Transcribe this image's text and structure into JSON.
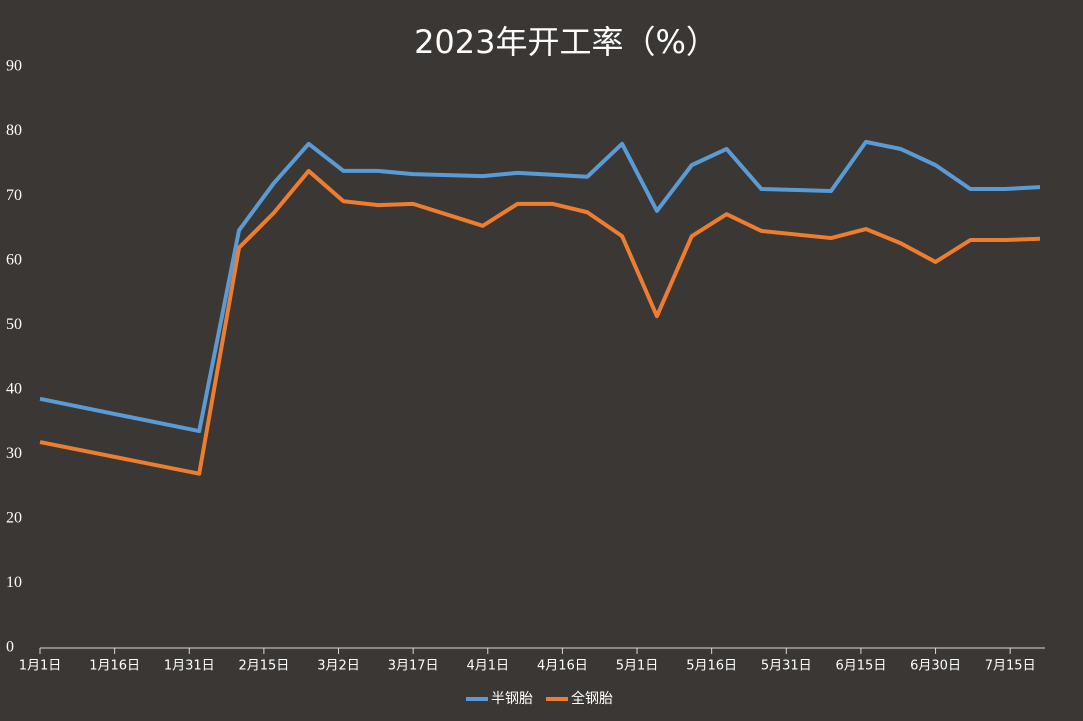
{
  "chart_data": {
    "type": "line",
    "title": "2023年开工率（%）",
    "x": [
      "01-01",
      "02-02",
      "02-10",
      "02-17",
      "02-24",
      "03-03",
      "03-10",
      "03-17",
      "03-31",
      "04-07",
      "04-14",
      "04-21",
      "04-28",
      "05-05",
      "05-12",
      "05-19",
      "05-26",
      "06-09",
      "06-16",
      "06-23",
      "06-30",
      "07-07",
      "07-14",
      "07-21"
    ],
    "series": [
      {
        "name": "半钢胎",
        "color": "#5b9bd5",
        "values": [
          38.6,
          33.6,
          64.7,
          72.0,
          78.1,
          73.9,
          73.9,
          73.4,
          73.1,
          73.6,
          73.3,
          73.0,
          78.1,
          67.7,
          74.8,
          77.3,
          71.1,
          70.8,
          78.4,
          77.3,
          74.8,
          71.1,
          71.1,
          71.4
        ]
      },
      {
        "name": "全钢胎",
        "color": "#ed7d31",
        "values": [
          31.9,
          27.0,
          62.0,
          67.4,
          73.9,
          69.2,
          68.6,
          68.8,
          65.4,
          68.8,
          68.8,
          67.5,
          63.8,
          51.4,
          63.8,
          67.2,
          64.6,
          63.5,
          64.9,
          62.7,
          59.8,
          63.2,
          63.2,
          63.4
        ]
      }
    ],
    "xlim": [
      "01-01",
      "07-22"
    ],
    "xticks": [
      {
        "value": "01-01",
        "label": "1月1日"
      },
      {
        "value": "01-16",
        "label": "1月16日"
      },
      {
        "value": "01-31",
        "label": "1月31日"
      },
      {
        "value": "02-15",
        "label": "2月15日"
      },
      {
        "value": "03-02",
        "label": "3月2日"
      },
      {
        "value": "03-17",
        "label": "3月17日"
      },
      {
        "value": "04-01",
        "label": "4月1日"
      },
      {
        "value": "04-16",
        "label": "4月16日"
      },
      {
        "value": "05-01",
        "label": "5月1日"
      },
      {
        "value": "05-16",
        "label": "5月16日"
      },
      {
        "value": "05-31",
        "label": "5月31日"
      },
      {
        "value": "06-15",
        "label": "6月15日"
      },
      {
        "value": "06-30",
        "label": "6月30日"
      },
      {
        "value": "07-15",
        "label": "7月15日"
      }
    ],
    "ylim": [
      0,
      90
    ],
    "yticks": [
      0,
      10,
      20,
      30,
      40,
      50,
      60,
      70,
      80,
      90
    ],
    "legend": "bottom"
  }
}
